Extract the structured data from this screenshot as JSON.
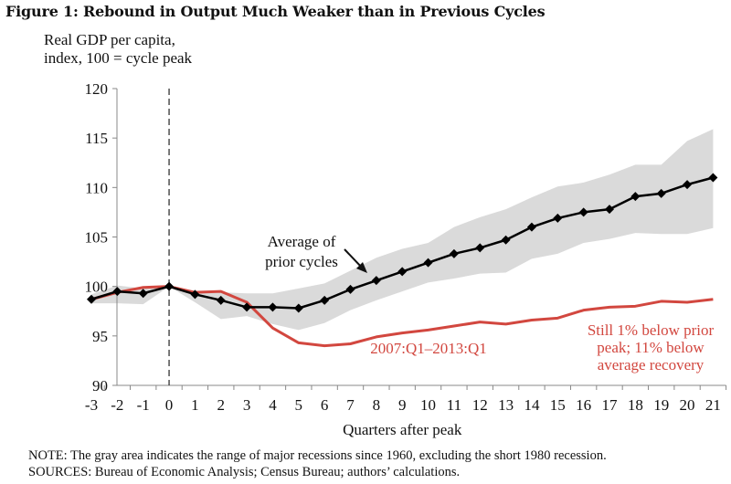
{
  "figure": {
    "title": "Figure 1: Rebound in Output Much Weaker than in Previous Cycles",
    "ylabel_line1": "Real GDP per capita,",
    "ylabel_line2": "index, 100  = cycle peak",
    "note": "NOTE: The gray area indicates the range of major recessions since 1960, excluding the short 1980 recession.",
    "sources": "SOURCES: Bureau of Economic Analysis; Census Bureau; authors’ calculations."
  },
  "colors": {
    "average": "#000000",
    "current": "#d2473f",
    "range": "#dadada",
    "axis": "#888888"
  },
  "chart_data": {
    "type": "line",
    "title": "Figure 1: Rebound in Output Much Weaker than in Previous Cycles",
    "xlabel": "Quarters after peak",
    "ylabel": "Real GDP per capita, index, 100 = cycle peak",
    "x": [
      -3,
      -2,
      -1,
      0,
      1,
      2,
      3,
      4,
      5,
      6,
      7,
      8,
      9,
      10,
      11,
      12,
      13,
      14,
      15,
      16,
      17,
      18,
      19,
      20,
      21
    ],
    "xticks": [
      "-3",
      "-2",
      "-1",
      "0",
      "1",
      "2",
      "3",
      "4",
      "5",
      "6",
      "7",
      "8",
      "9",
      "10",
      "11",
      "12",
      "13",
      "14",
      "15",
      "16",
      "17",
      "18",
      "19",
      "20",
      "21"
    ],
    "ylim": [
      90,
      120
    ],
    "yticks": [
      "90",
      "95",
      "100",
      "105",
      "110",
      "115",
      "120"
    ],
    "yticks_values": [
      90,
      95,
      100,
      105,
      110,
      115,
      120
    ],
    "grid": false,
    "reference_line": {
      "x": 0,
      "style": "dashed"
    },
    "series": [
      {
        "name": "Average of prior cycles",
        "marker": "diamond",
        "values": [
          98.7,
          99.5,
          99.3,
          100.0,
          99.2,
          98.6,
          97.9,
          97.9,
          97.8,
          98.6,
          99.7,
          100.6,
          101.5,
          102.4,
          103.3,
          103.9,
          104.7,
          106.0,
          106.9,
          107.5,
          107.8,
          109.1,
          109.4,
          110.3,
          111.0
        ]
      },
      {
        "name": "2007:Q1–2013:Q1",
        "marker": "none",
        "values": [
          98.7,
          99.4,
          99.9,
          100.0,
          99.4,
          99.5,
          98.4,
          95.8,
          94.3,
          94.0,
          94.2,
          94.9,
          95.3,
          95.6,
          96.0,
          96.4,
          96.2,
          96.6,
          96.8,
          97.6,
          97.9,
          98.0,
          98.5,
          98.4,
          98.7
        ]
      }
    ],
    "range_band": {
      "name": "Range of major recessions since 1960",
      "upper": [
        99.2,
        100.1,
        99.8,
        100.0,
        99.5,
        99.4,
        99.3,
        99.3,
        99.8,
        100.3,
        101.6,
        102.9,
        103.8,
        104.4,
        106.0,
        107.0,
        107.8,
        109.0,
        110.1,
        110.5,
        111.3,
        112.3,
        112.3,
        114.7,
        115.9
      ],
      "lower": [
        98.3,
        98.3,
        98.2,
        100.0,
        98.4,
        96.7,
        97.0,
        96.2,
        95.6,
        96.3,
        97.6,
        98.6,
        99.5,
        100.4,
        100.8,
        101.3,
        101.4,
        102.8,
        103.3,
        104.4,
        104.8,
        105.4,
        105.3,
        105.3,
        105.9
      ]
    },
    "annotations": [
      {
        "text_lines": [
          "Average of",
          "prior cycles"
        ],
        "color": "#111111",
        "target": "Average of prior cycles",
        "arrow": true
      },
      {
        "text_lines": [
          "2007:Q1–2013:Q1"
        ],
        "color": "#d2473f",
        "target": "2007:Q1–2013:Q1",
        "arrow": false
      },
      {
        "text_lines": [
          "Still 1% below prior",
          "peak; 11% below",
          "average recovery"
        ],
        "color": "#d2473f",
        "arrow": false
      }
    ]
  }
}
